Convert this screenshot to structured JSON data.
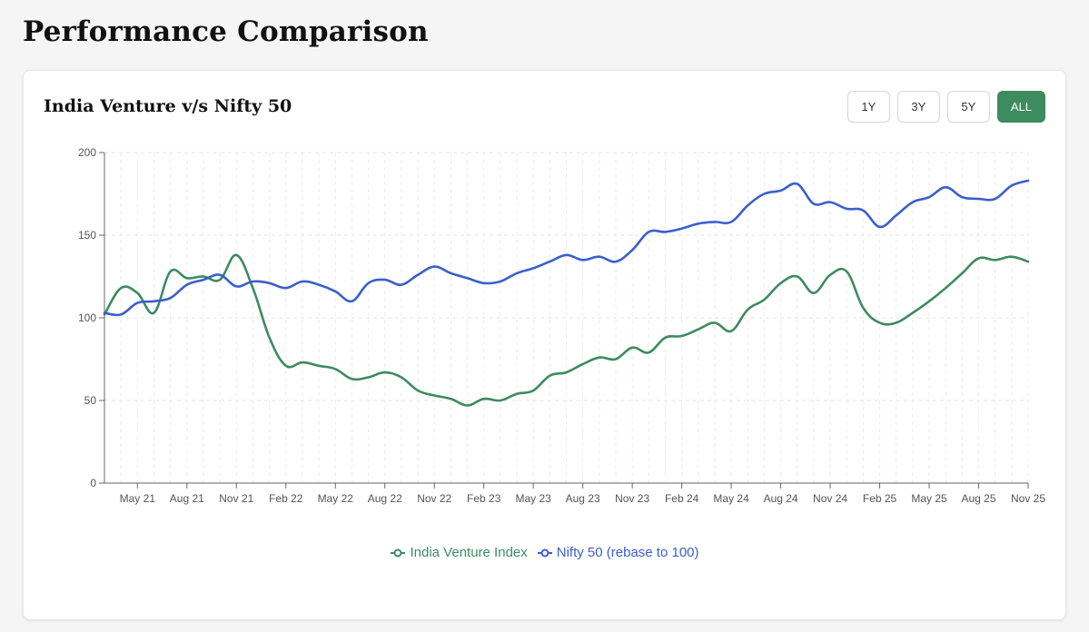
{
  "page": {
    "title": "Performance Comparison"
  },
  "card": {
    "title": "India Venture v/s Nifty 50",
    "ranges": [
      {
        "label": "1Y",
        "active": false
      },
      {
        "label": "3Y",
        "active": false
      },
      {
        "label": "5Y",
        "active": false
      },
      {
        "label": "ALL",
        "active": true
      }
    ]
  },
  "colors": {
    "venture": "#3d8b5f",
    "nifty": "#3a5fcd",
    "accent": "#3d8b5f"
  },
  "chart_data": {
    "type": "line",
    "title": "India Venture v/s Nifty 50",
    "xlabel": "",
    "ylabel": "",
    "ylim": [
      0,
      200
    ],
    "yticks": [
      0,
      50,
      100,
      150,
      200
    ],
    "xlim": [
      0,
      56
    ],
    "xticks": [
      {
        "x": 2,
        "label": "May 21"
      },
      {
        "x": 5,
        "label": "Aug 21"
      },
      {
        "x": 8,
        "label": "Nov 21"
      },
      {
        "x": 11,
        "label": "Feb 22"
      },
      {
        "x": 14,
        "label": "May 22"
      },
      {
        "x": 17,
        "label": "Aug 22"
      },
      {
        "x": 20,
        "label": "Nov 22"
      },
      {
        "x": 23,
        "label": "Feb 23"
      },
      {
        "x": 26,
        "label": "May 23"
      },
      {
        "x": 29,
        "label": "Aug 23"
      },
      {
        "x": 32,
        "label": "Nov 23"
      },
      {
        "x": 35,
        "label": "Feb 24"
      },
      {
        "x": 38,
        "label": "May 24"
      },
      {
        "x": 41,
        "label": "Aug 24"
      },
      {
        "x": 44,
        "label": "Nov 24"
      },
      {
        "x": 47,
        "label": "Feb 25"
      },
      {
        "x": 50,
        "label": "May 25"
      },
      {
        "x": 53,
        "label": "Aug 25"
      },
      {
        "x": 56,
        "label": "Nov 25"
      }
    ],
    "x": [
      0,
      1,
      2,
      3,
      4,
      5,
      6,
      7,
      8,
      9,
      10,
      11,
      12,
      13,
      14,
      15,
      16,
      17,
      18,
      19,
      20,
      21,
      22,
      23,
      24,
      25,
      26,
      27,
      28,
      29,
      30,
      31,
      32,
      33,
      34,
      35,
      36,
      37,
      38,
      39,
      40,
      41,
      42,
      43,
      44,
      45,
      46,
      47,
      48,
      49,
      50,
      51,
      52,
      53,
      54,
      55,
      56
    ],
    "series": [
      {
        "name": "India Venture Index",
        "color": "#3d8b5f",
        "values": [
          102,
          118,
          115,
          103,
          128,
          124,
          125,
          123,
          138,
          118,
          88,
          71,
          73,
          71,
          69,
          63,
          64,
          67,
          64,
          56,
          53,
          51,
          47,
          51,
          50,
          54,
          56,
          65,
          67,
          72,
          76,
          75,
          82,
          79,
          88,
          89,
          93,
          97,
          92,
          105,
          111,
          121,
          125,
          115,
          126,
          128,
          106,
          97,
          97,
          103,
          110,
          118,
          127,
          136,
          135,
          137,
          134
        ]
      },
      {
        "name": "Nifty 50 (rebase to 100)",
        "color": "#3a5fcd",
        "values": [
          103,
          102,
          109,
          110,
          112,
          120,
          123,
          126,
          119,
          122,
          121,
          118,
          122,
          120,
          116,
          110,
          121,
          123,
          120,
          126,
          131,
          127,
          124,
          121,
          122,
          127,
          130,
          134,
          138,
          135,
          137,
          134,
          141,
          152,
          152,
          154,
          157,
          158,
          158,
          168,
          175,
          177,
          181,
          169,
          170,
          166,
          165,
          155,
          162,
          170,
          173,
          179,
          173,
          172,
          172,
          180,
          183
        ]
      }
    ],
    "legend": "bottom-center"
  }
}
